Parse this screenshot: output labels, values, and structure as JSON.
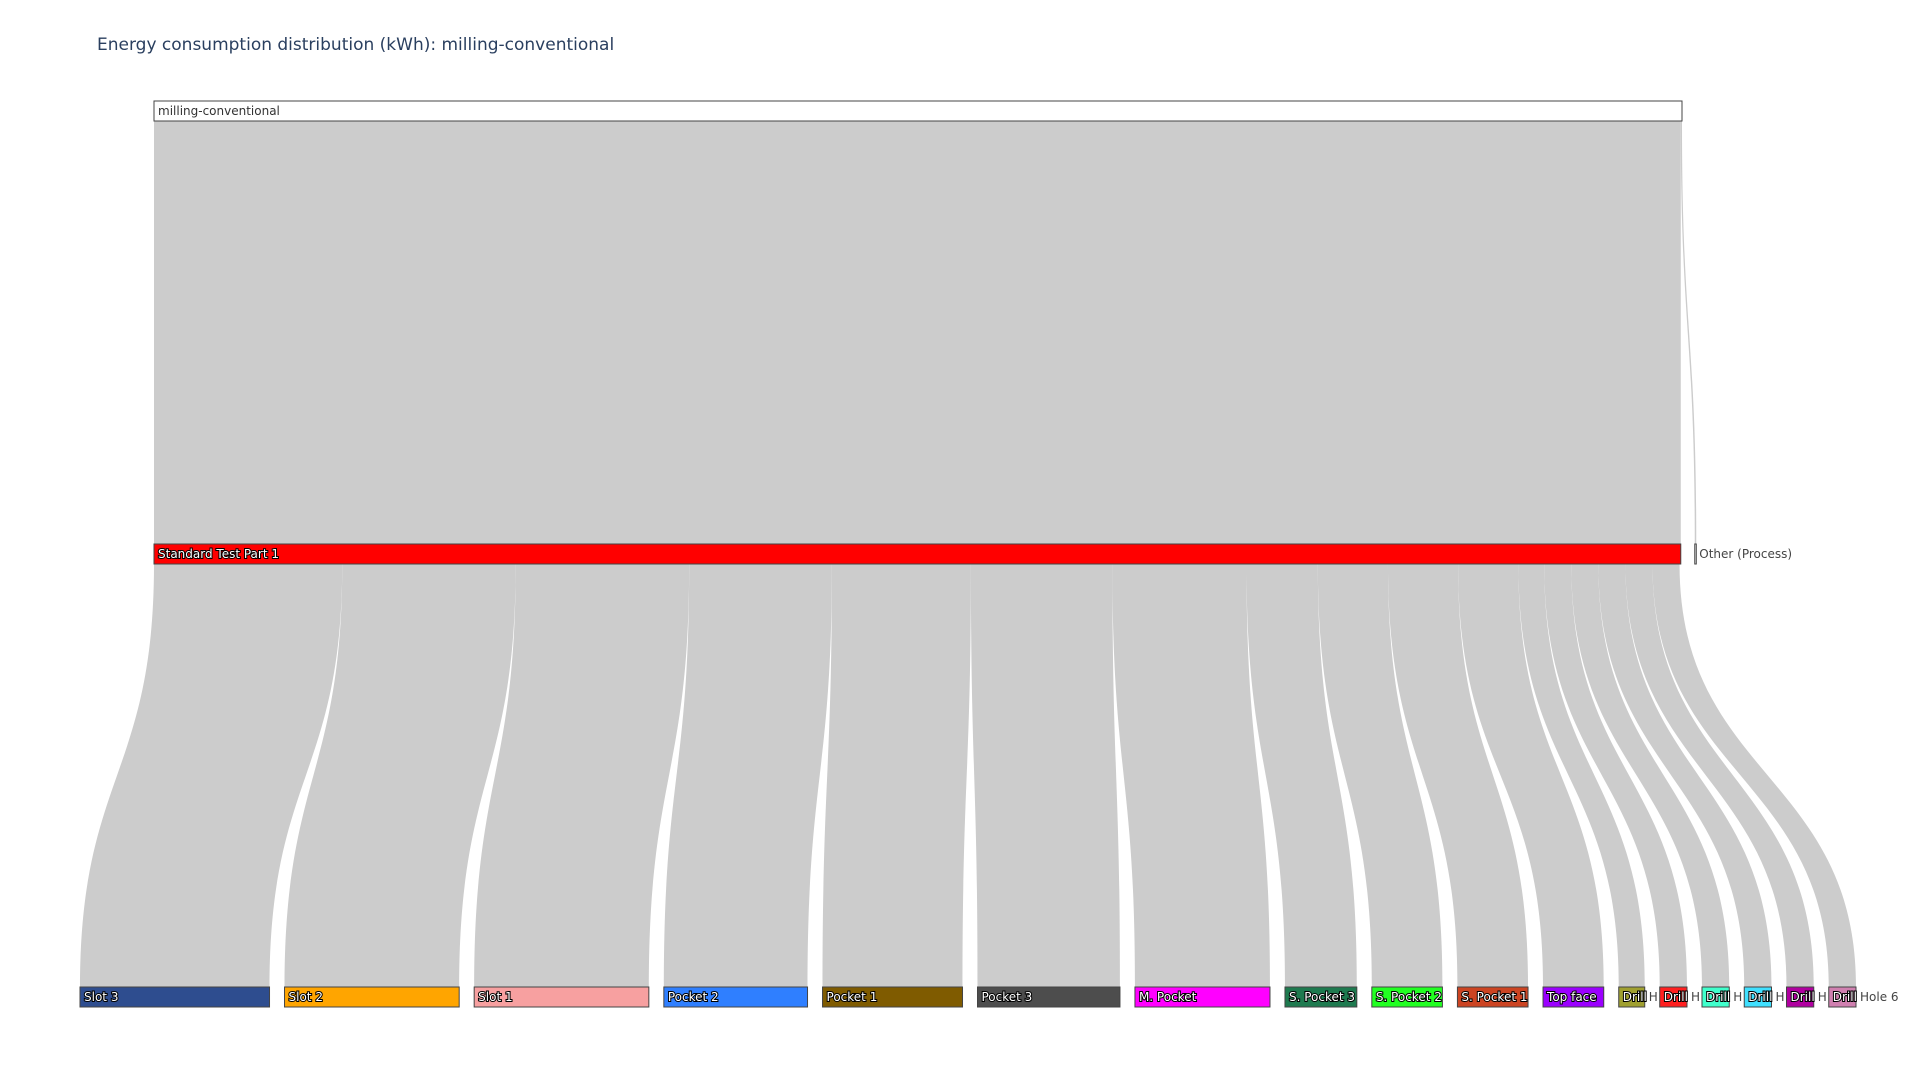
{
  "chart_data": {
    "type": "sankey",
    "title": "Energy consumption distribution (kWh): milling-conventional",
    "nodes": [
      {
        "id": "root",
        "label": "milling-conventional",
        "color": "#ffffff",
        "level": 0
      },
      {
        "id": "part",
        "label": "Standard Test Part 1",
        "color": "#ff0000",
        "level": 1
      },
      {
        "id": "other",
        "label": "Other (Process)",
        "color": "#ffffff",
        "level": 1
      },
      {
        "id": "slot3",
        "label": "Slot 3",
        "color": "#2e4d8f",
        "level": 2
      },
      {
        "id": "slot2",
        "label": "Slot 2",
        "color": "#ffa500",
        "level": 2
      },
      {
        "id": "slot1",
        "label": "Slot 1",
        "color": "#f7a0a0",
        "level": 2
      },
      {
        "id": "pocket2",
        "label": "Pocket 2",
        "color": "#2f7fff",
        "level": 2
      },
      {
        "id": "pocket1",
        "label": "Pocket 1",
        "color": "#7f5b00",
        "level": 2
      },
      {
        "id": "pocket3",
        "label": "Pocket 3",
        "color": "#4d4d4d",
        "level": 2
      },
      {
        "id": "mpocket",
        "label": "M. Pocket",
        "color": "#ff00ff",
        "level": 2
      },
      {
        "id": "spocket3",
        "label": "S. Pocket 3",
        "color": "#1e7a4f",
        "level": 2
      },
      {
        "id": "spocket2",
        "label": "S. Pocket 2",
        "color": "#22ff22",
        "level": 2
      },
      {
        "id": "spocket1",
        "label": "S. Pocket 1",
        "color": "#cc4422",
        "level": 2
      },
      {
        "id": "topface",
        "label": "Top face",
        "color": "#9b00ff",
        "level": 2
      },
      {
        "id": "drill1",
        "label": "Drill",
        "color": "#a0a030",
        "level": 2,
        "trail_label": "H"
      },
      {
        "id": "drill2",
        "label": "Drill",
        "color": "#ff2020",
        "level": 2,
        "trail_label": "H"
      },
      {
        "id": "drill3",
        "label": "Drill",
        "color": "#40ffcc",
        "level": 2,
        "trail_label": "H"
      },
      {
        "id": "drill4",
        "label": "Drill",
        "color": "#40e0ff",
        "level": 2,
        "trail_label": "H"
      },
      {
        "id": "drill5",
        "label": "Drill",
        "color": "#b000a0",
        "level": 2,
        "trail_label": "H"
      },
      {
        "id": "drill6",
        "label": "Drill",
        "color": "#d080b0",
        "level": 2,
        "trail_label": "Hole 6"
      }
    ],
    "links": [
      {
        "source": "root",
        "target": "part",
        "value": 1241
      },
      {
        "source": "root",
        "target": "other",
        "value": 1
      },
      {
        "source": "part",
        "target": "slot3",
        "value": 153
      },
      {
        "source": "part",
        "target": "slot2",
        "value": 141
      },
      {
        "source": "part",
        "target": "slot1",
        "value": 141
      },
      {
        "source": "part",
        "target": "pocket2",
        "value": 116
      },
      {
        "source": "part",
        "target": "pocket1",
        "value": 113
      },
      {
        "source": "part",
        "target": "pocket3",
        "value": 115
      },
      {
        "source": "part",
        "target": "mpocket",
        "value": 109
      },
      {
        "source": "part",
        "target": "spocket3",
        "value": 58
      },
      {
        "source": "part",
        "target": "spocket2",
        "value": 57
      },
      {
        "source": "part",
        "target": "spocket1",
        "value": 57
      },
      {
        "source": "part",
        "target": "topface",
        "value": 49
      },
      {
        "source": "part",
        "target": "drill1",
        "value": 21
      },
      {
        "source": "part",
        "target": "drill2",
        "value": 22
      },
      {
        "source": "part",
        "target": "drill3",
        "value": 22
      },
      {
        "source": "part",
        "target": "drill4",
        "value": 22
      },
      {
        "source": "part",
        "target": "drill5",
        "value": 22
      },
      {
        "source": "part",
        "target": "drill6",
        "value": 22
      }
    ],
    "orientation": "vertical",
    "link_color": "#cccccc"
  }
}
